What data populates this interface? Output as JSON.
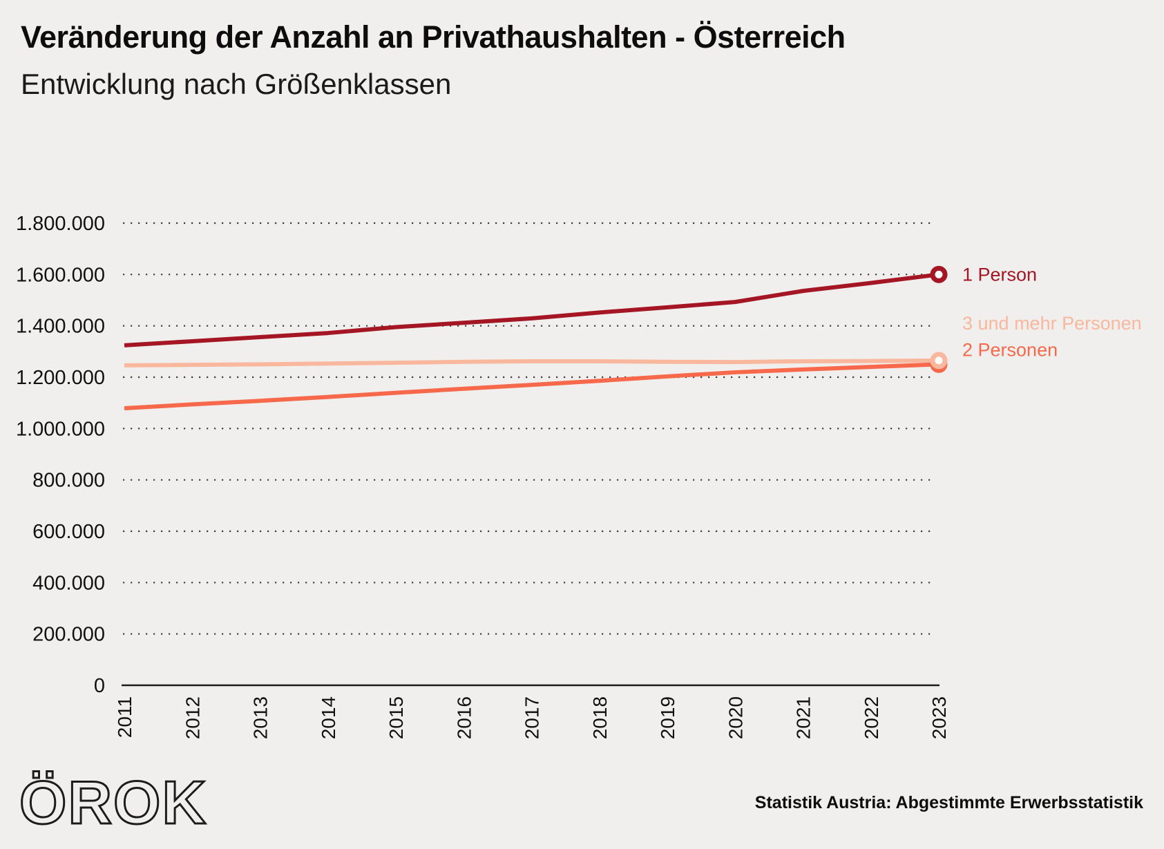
{
  "header": {
    "title": "Veränderung der Anzahl an Privathaushalten - Österreich",
    "subtitle": "Entwicklung nach Größenklassen"
  },
  "chart_data": {
    "type": "line",
    "x": [
      2011,
      2012,
      2013,
      2014,
      2015,
      2016,
      2017,
      2018,
      2019,
      2020,
      2021,
      2022,
      2023
    ],
    "series": [
      {
        "name": "1 Person",
        "color": "#A41623",
        "values": [
          1324000,
          1340000,
          1356000,
          1372000,
          1395000,
          1412000,
          1429000,
          1452000,
          1472000,
          1493000,
          1536000,
          1567000,
          1600000
        ]
      },
      {
        "name": "2 Personen",
        "color": "#F8694B",
        "values": [
          1079000,
          1094000,
          1108000,
          1123000,
          1139000,
          1155000,
          1170000,
          1186000,
          1203000,
          1219000,
          1230000,
          1240000,
          1250000
        ]
      },
      {
        "name": "3 und mehr Personen",
        "color": "#F9B89D",
        "values": [
          1246000,
          1248000,
          1250000,
          1253000,
          1256000,
          1260000,
          1262000,
          1262000,
          1260000,
          1259000,
          1262000,
          1263000,
          1265000
        ]
      }
    ],
    "ylim": [
      0,
      1800000
    ],
    "yticks": [
      {
        "value": 0,
        "label": "0"
      },
      {
        "value": 200000,
        "label": "200.000"
      },
      {
        "value": 400000,
        "label": "400.000"
      },
      {
        "value": 600000,
        "label": "600.000"
      },
      {
        "value": 800000,
        "label": "800.000"
      },
      {
        "value": 1000000,
        "label": "1.000.000"
      },
      {
        "value": 1200000,
        "label": "1.200.000"
      },
      {
        "value": 1400000,
        "label": "1.400.000"
      },
      {
        "value": 1600000,
        "label": "1.600.000"
      },
      {
        "value": 1800000,
        "label": "1.800.000"
      }
    ],
    "xlabel": "",
    "ylabel": "",
    "grid": "horizontal-dotted",
    "legend_position": "labels-at-line-endpoints-right"
  },
  "footer": {
    "logo_text": "ÖROK",
    "source": "Statistik Austria: Abgestimmte Erwerbsstatistik"
  },
  "colors": {
    "background": "#F1EFED",
    "text": "#111111",
    "axis": "#1A1A1A",
    "gridline": "#3B3B3B"
  }
}
